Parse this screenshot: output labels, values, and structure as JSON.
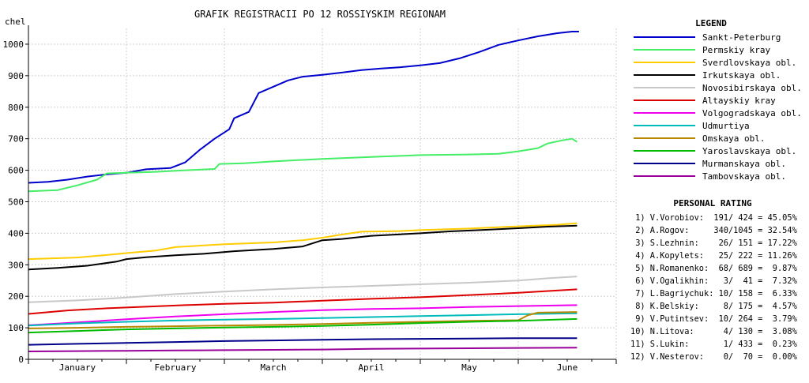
{
  "chart_data": {
    "type": "line",
    "title": "GRAFIK REGISTRACII PO 12 ROSSIYSKIM REGIONAM",
    "ylabel": "chel",
    "xlabel": "",
    "ylim": [
      0,
      1050
    ],
    "yticks": [
      0,
      100,
      200,
      300,
      400,
      500,
      600,
      700,
      800,
      900,
      1000
    ],
    "xticks": [
      "January",
      "February",
      "March",
      "April",
      "May",
      "June"
    ],
    "xlim": [
      0,
      6
    ],
    "grid": true,
    "legend_title": "LEGEND",
    "legend_position": "right",
    "series": [
      {
        "name": "Sankt-Peterburg",
        "color": "#0000cc",
        "points": [
          [
            0,
            560
          ],
          [
            0.2,
            563
          ],
          [
            0.4,
            570
          ],
          [
            0.6,
            580
          ],
          [
            0.8,
            587
          ],
          [
            1.0,
            592
          ],
          [
            1.2,
            603
          ],
          [
            1.45,
            607
          ],
          [
            1.6,
            625
          ],
          [
            1.75,
            665
          ],
          [
            1.9,
            700
          ],
          [
            2.05,
            730
          ],
          [
            2.1,
            765
          ],
          [
            2.25,
            785
          ],
          [
            2.35,
            845
          ],
          [
            2.5,
            865
          ],
          [
            2.65,
            885
          ],
          [
            2.8,
            897
          ],
          [
            3.0,
            903
          ],
          [
            3.2,
            910
          ],
          [
            3.4,
            918
          ],
          [
            3.6,
            923
          ],
          [
            3.8,
            927
          ],
          [
            4.0,
            933
          ],
          [
            4.2,
            940
          ],
          [
            4.4,
            955
          ],
          [
            4.6,
            975
          ],
          [
            4.8,
            998
          ],
          [
            5.0,
            1012
          ],
          [
            5.2,
            1025
          ],
          [
            5.4,
            1035
          ],
          [
            5.55,
            1040
          ],
          [
            5.62,
            1040
          ]
        ]
      },
      {
        "name": "Permskiy kray",
        "color": "#44ee66",
        "points": [
          [
            0,
            533
          ],
          [
            0.3,
            537
          ],
          [
            0.5,
            552
          ],
          [
            0.7,
            570
          ],
          [
            0.8,
            590
          ],
          [
            1.0,
            592
          ],
          [
            1.3,
            595
          ],
          [
            1.6,
            600
          ],
          [
            1.9,
            604
          ],
          [
            1.95,
            620
          ],
          [
            2.2,
            622
          ],
          [
            2.5,
            628
          ],
          [
            3.0,
            636
          ],
          [
            3.5,
            642
          ],
          [
            4.0,
            648
          ],
          [
            4.5,
            650
          ],
          [
            4.8,
            652
          ],
          [
            5.0,
            660
          ],
          [
            5.2,
            670
          ],
          [
            5.3,
            685
          ],
          [
            5.45,
            695
          ],
          [
            5.55,
            700
          ],
          [
            5.6,
            690
          ]
        ]
      },
      {
        "name": "Sverdlovskaya obl.",
        "color": "#ffcc00",
        "points": [
          [
            0,
            318
          ],
          [
            0.5,
            323
          ],
          [
            0.8,
            331
          ],
          [
            1.0,
            337
          ],
          [
            1.3,
            345
          ],
          [
            1.5,
            356
          ],
          [
            2.0,
            365
          ],
          [
            2.5,
            371
          ],
          [
            2.8,
            378
          ],
          [
            3.0,
            386
          ],
          [
            3.2,
            396
          ],
          [
            3.4,
            405
          ],
          [
            3.8,
            407
          ],
          [
            4.0,
            410
          ],
          [
            4.5,
            415
          ],
          [
            5.0,
            422
          ],
          [
            5.4,
            427
          ],
          [
            5.6,
            432
          ]
        ]
      },
      {
        "name": "Irkutskaya obl.",
        "color": "#000000",
        "points": [
          [
            0,
            285
          ],
          [
            0.3,
            290
          ],
          [
            0.6,
            297
          ],
          [
            0.9,
            310
          ],
          [
            1.0,
            318
          ],
          [
            1.2,
            324
          ],
          [
            1.5,
            330
          ],
          [
            1.8,
            335
          ],
          [
            2.1,
            343
          ],
          [
            2.5,
            350
          ],
          [
            2.8,
            358
          ],
          [
            3.0,
            378
          ],
          [
            3.2,
            382
          ],
          [
            3.5,
            392
          ],
          [
            4.0,
            400
          ],
          [
            4.3,
            406
          ],
          [
            4.6,
            410
          ],
          [
            5.0,
            416
          ],
          [
            5.3,
            421
          ],
          [
            5.6,
            424
          ]
        ]
      },
      {
        "name": "Novosibirskaya obl.",
        "color": "#c8c8c8",
        "points": [
          [
            0,
            181
          ],
          [
            0.5,
            187
          ],
          [
            1.0,
            196
          ],
          [
            1.5,
            207
          ],
          [
            2.0,
            215
          ],
          [
            2.5,
            222
          ],
          [
            3.0,
            228
          ],
          [
            3.5,
            233
          ],
          [
            4.0,
            238
          ],
          [
            4.5,
            243
          ],
          [
            5.0,
            250
          ],
          [
            5.3,
            257
          ],
          [
            5.6,
            263
          ]
        ]
      },
      {
        "name": "Altayskiy kray",
        "color": "#dd0000",
        "points": [
          [
            0,
            144
          ],
          [
            0.4,
            155
          ],
          [
            0.8,
            162
          ],
          [
            1.2,
            167
          ],
          [
            1.6,
            172
          ],
          [
            2.0,
            176
          ],
          [
            2.5,
            180
          ],
          [
            3.0,
            186
          ],
          [
            3.5,
            192
          ],
          [
            4.0,
            197
          ],
          [
            4.5,
            204
          ],
          [
            5.0,
            211
          ],
          [
            5.6,
            222
          ]
        ]
      },
      {
        "name": "Volgogradskaya obl.",
        "color": "#ee00ee",
        "points": [
          [
            0,
            108
          ],
          [
            0.5,
            117
          ],
          [
            1.0,
            127
          ],
          [
            1.5,
            136
          ],
          [
            2.0,
            143
          ],
          [
            2.5,
            150
          ],
          [
            3.0,
            156
          ],
          [
            3.5,
            160
          ],
          [
            4.0,
            162
          ],
          [
            4.5,
            166
          ],
          [
            5.0,
            169
          ],
          [
            5.6,
            172
          ]
        ]
      },
      {
        "name": "Udmurtiya",
        "color": "#00bbbb",
        "points": [
          [
            0,
            107
          ],
          [
            0.5,
            114
          ],
          [
            1.0,
            119
          ],
          [
            1.5,
            123
          ],
          [
            2.0,
            126
          ],
          [
            2.5,
            128
          ],
          [
            3.0,
            131
          ],
          [
            3.5,
            134
          ],
          [
            4.0,
            137
          ],
          [
            4.5,
            140
          ],
          [
            5.0,
            143
          ],
          [
            5.6,
            146
          ]
        ]
      },
      {
        "name": "Omskaya obl.",
        "color": "#b88800",
        "points": [
          [
            0,
            98
          ],
          [
            0.5,
            100
          ],
          [
            1.0,
            103
          ],
          [
            1.5,
            105
          ],
          [
            2.0,
            107
          ],
          [
            2.5,
            109
          ],
          [
            3.0,
            112
          ],
          [
            3.5,
            116
          ],
          [
            4.0,
            119
          ],
          [
            4.5,
            122
          ],
          [
            5.0,
            124
          ],
          [
            5.1,
            140
          ],
          [
            5.2,
            148
          ],
          [
            5.6,
            150
          ]
        ]
      },
      {
        "name": "Yaroslavskaya obl.",
        "color": "#00bb00",
        "points": [
          [
            0,
            85
          ],
          [
            0.5,
            90
          ],
          [
            1.0,
            95
          ],
          [
            1.5,
            98
          ],
          [
            2.0,
            101
          ],
          [
            2.5,
            103
          ],
          [
            3.0,
            106
          ],
          [
            3.5,
            110
          ],
          [
            4.0,
            115
          ],
          [
            4.5,
            119
          ],
          [
            5.0,
            122
          ],
          [
            5.6,
            128
          ]
        ]
      },
      {
        "name": "Murmanskaya obl.",
        "color": "#000088",
        "points": [
          [
            0,
            46
          ],
          [
            0.5,
            49
          ],
          [
            1.0,
            52
          ],
          [
            1.5,
            55
          ],
          [
            2.0,
            58
          ],
          [
            2.5,
            60
          ],
          [
            3.0,
            62
          ],
          [
            3.5,
            64
          ],
          [
            4.0,
            65
          ],
          [
            4.5,
            66
          ],
          [
            5.0,
            67
          ],
          [
            5.6,
            67
          ]
        ]
      },
      {
        "name": "Tambovskaya obl.",
        "color": "#990099",
        "points": [
          [
            0,
            25
          ],
          [
            0.5,
            26
          ],
          [
            1.0,
            27
          ],
          [
            1.5,
            28
          ],
          [
            2.0,
            29
          ],
          [
            2.5,
            30
          ],
          [
            3.0,
            31
          ],
          [
            3.5,
            33
          ],
          [
            4.0,
            34
          ],
          [
            4.5,
            35
          ],
          [
            5.0,
            36
          ],
          [
            5.6,
            37
          ]
        ]
      }
    ]
  },
  "rating": {
    "title": "PERSONAL RATING",
    "rows": [
      " 1) V.Vorobiov:  191/ 424 = 45.05%",
      " 2) A.Rogov:     340/1045 = 32.54%",
      " 3) S.Lezhnin:    26/ 151 = 17.22%",
      " 4) A.Kopylets:   25/ 222 = 11.26%",
      " 5) N.Romanenko:  68/ 689 =  9.87%",
      " 6) V.Ogalikhin:   3/  41 =  7.32%",
      " 7) L.Bagriychuk: 10/ 158 =  6.33%",
      " 8) K.Belskiy:     8/ 175 =  4.57%",
      " 9) V.Putintsev:  10/ 264 =  3.79%",
      "10) N.Litova:      4/ 130 =  3.08%",
      "11) S.Lukin:       1/ 433 =  0.23%",
      "12) V.Nesterov:    0/  70 =  0.00%"
    ]
  }
}
